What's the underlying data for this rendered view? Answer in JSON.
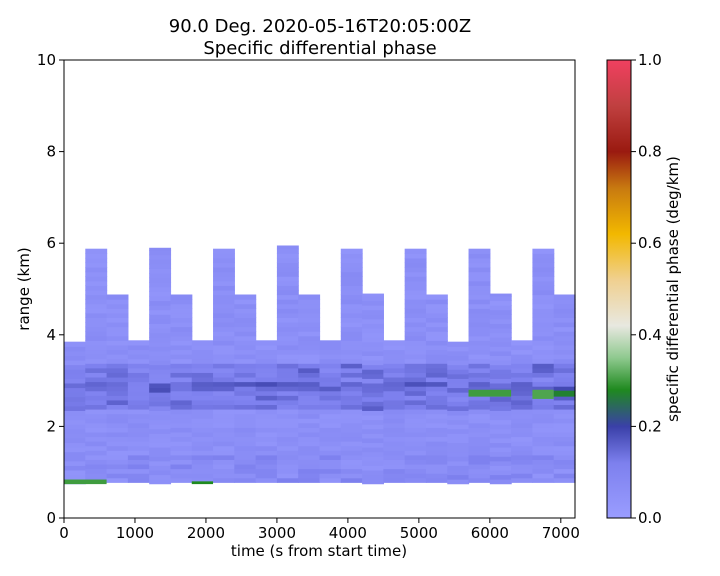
{
  "chart_data": {
    "type": "heatmap",
    "title": "90.0 Deg. 2020-05-16T20:05:00Z",
    "subtitle": "Specific differential phase",
    "xlabel": "time (s from start time)",
    "ylabel": "range (km)",
    "xlim": [
      0,
      7200
    ],
    "ylim": [
      0,
      10
    ],
    "xticks": [
      0,
      1000,
      2000,
      3000,
      4000,
      5000,
      6000,
      7000
    ],
    "yticks": [
      0,
      2,
      4,
      6,
      8,
      10
    ],
    "grid": false,
    "colorbar": {
      "label": "specific differential phase (deg/km)",
      "range": [
        0.0,
        1.0
      ],
      "ticks": [
        "0.0",
        "0.2",
        "0.4",
        "0.6",
        "0.8",
        "1.0"
      ],
      "position": "right"
    },
    "time_bin_s": 300,
    "columns": [
      {
        "t0": 0,
        "r_min": 0.75,
        "r_max": 3.9
      },
      {
        "t0": 300,
        "r_min": 0.78,
        "r_max": 5.9
      },
      {
        "t0": 600,
        "r_min": 0.78,
        "r_max": 4.9
      },
      {
        "t0": 900,
        "r_min": 0.78,
        "r_max": 3.9
      },
      {
        "t0": 1200,
        "r_min": 0.75,
        "r_max": 5.9
      },
      {
        "t0": 1500,
        "r_min": 0.78,
        "r_max": 4.9
      },
      {
        "t0": 1800,
        "r_min": 0.78,
        "r_max": 3.9
      },
      {
        "t0": 2100,
        "r_min": 0.78,
        "r_max": 5.9
      },
      {
        "t0": 2400,
        "r_min": 0.78,
        "r_max": 4.9
      },
      {
        "t0": 2700,
        "r_min": 0.78,
        "r_max": 3.9
      },
      {
        "t0": 3000,
        "r_min": 0.78,
        "r_max": 5.95
      },
      {
        "t0": 3300,
        "r_min": 0.78,
        "r_max": 4.9
      },
      {
        "t0": 3600,
        "r_min": 0.78,
        "r_max": 3.9
      },
      {
        "t0": 3900,
        "r_min": 0.78,
        "r_max": 5.9
      },
      {
        "t0": 4200,
        "r_min": 0.75,
        "r_max": 4.9
      },
      {
        "t0": 4500,
        "r_min": 0.78,
        "r_max": 3.9
      },
      {
        "t0": 4800,
        "r_min": 0.78,
        "r_max": 5.9
      },
      {
        "t0": 5100,
        "r_min": 0.78,
        "r_max": 4.9
      },
      {
        "t0": 5400,
        "r_min": 0.75,
        "r_max": 3.9
      },
      {
        "t0": 5700,
        "r_min": 0.78,
        "r_max": 5.9
      },
      {
        "t0": 6000,
        "r_min": 0.75,
        "r_max": 4.9
      },
      {
        "t0": 6300,
        "r_min": 0.78,
        "r_max": 3.9
      },
      {
        "t0": 6600,
        "r_min": 0.78,
        "r_max": 5.9
      },
      {
        "t0": 6900,
        "r_min": 0.78,
        "r_max": 4.9
      }
    ],
    "features": [
      {
        "t_start": 0,
        "t_end": 600,
        "r_min": 0.74,
        "r_max": 0.84,
        "value": 0.3
      },
      {
        "t_start": 1800,
        "t_end": 2100,
        "r_min": 0.74,
        "r_max": 0.8,
        "value": 0.28
      },
      {
        "t_start": 5700,
        "t_end": 6300,
        "r_min": 2.65,
        "r_max": 2.8,
        "value": 0.3
      },
      {
        "t_start": 6600,
        "t_end": 6900,
        "r_min": 2.6,
        "r_max": 2.8,
        "value": 0.31
      },
      {
        "t_start": 6900,
        "t_end": 7200,
        "r_min": 2.65,
        "r_max": 2.78,
        "value": 0.27
      }
    ],
    "colormap": [
      {
        "v": 0.0,
        "color": "#9a9dff"
      },
      {
        "v": 0.12,
        "color": "#7d80ee"
      },
      {
        "v": 0.2,
        "color": "#3a40a8"
      },
      {
        "v": 0.28,
        "color": "#1f8a1f"
      },
      {
        "v": 0.35,
        "color": "#8fc98f"
      },
      {
        "v": 0.42,
        "color": "#e8e8e0"
      },
      {
        "v": 0.52,
        "color": "#f0d090"
      },
      {
        "v": 0.62,
        "color": "#f2b800"
      },
      {
        "v": 0.72,
        "color": "#c87a10"
      },
      {
        "v": 0.8,
        "color": "#9a1a10"
      },
      {
        "v": 0.9,
        "color": "#c04040"
      },
      {
        "v": 1.0,
        "color": "#f04060"
      }
    ]
  }
}
